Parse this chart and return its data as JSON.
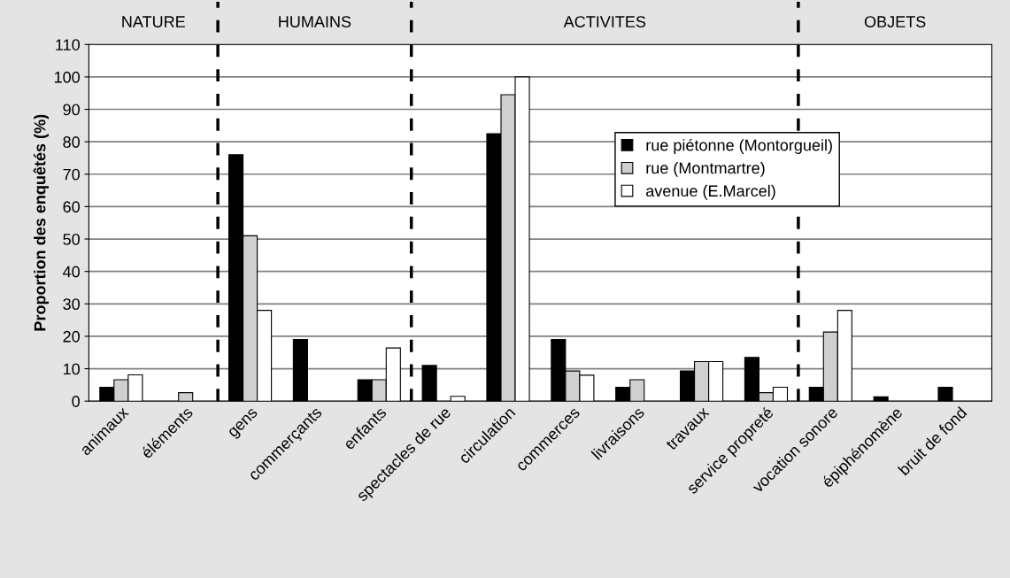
{
  "chart_data": {
    "type": "bar",
    "ylabel": "Proportion des enquêtés (%)",
    "categories": [
      "animaux",
      "éléments",
      "gens",
      "commerçants",
      "enfants",
      "spectacles de rue",
      "circulation",
      "commerces",
      "livraisons",
      "travaux",
      "service propreté",
      "vocation sonore",
      "épiphénomène",
      "bruit de fond"
    ],
    "series": [
      {
        "name": "rue piétonne (Montorgueil)",
        "color": "#000000",
        "values": [
          4.3,
          0,
          76,
          19,
          6.6,
          11,
          82.5,
          19,
          4.3,
          9.3,
          13.5,
          4.3,
          1.3,
          4.3
        ]
      },
      {
        "name": "rue (Montmartre)",
        "color": "#d0d0d0",
        "values": [
          6.6,
          2.6,
          51,
          0,
          6.6,
          0,
          94.5,
          9.3,
          6.6,
          12.2,
          2.6,
          21.3,
          0,
          0
        ]
      },
      {
        "name": "avenue (E.Marcel)",
        "color": "#ffffff",
        "values": [
          8.1,
          0,
          28,
          0,
          16.4,
          1.5,
          100,
          8,
          0,
          12.2,
          4.3,
          28,
          0,
          0
        ]
      }
    ],
    "ylim": [
      0,
      110
    ],
    "yticks": [
      0,
      10,
      20,
      30,
      40,
      50,
      60,
      70,
      80,
      90,
      100,
      110
    ],
    "grid": "y",
    "legend": "right",
    "annotations": [
      "NATURE",
      "HUMAINS",
      "ACTIVITES",
      "OBJETS"
    ]
  }
}
